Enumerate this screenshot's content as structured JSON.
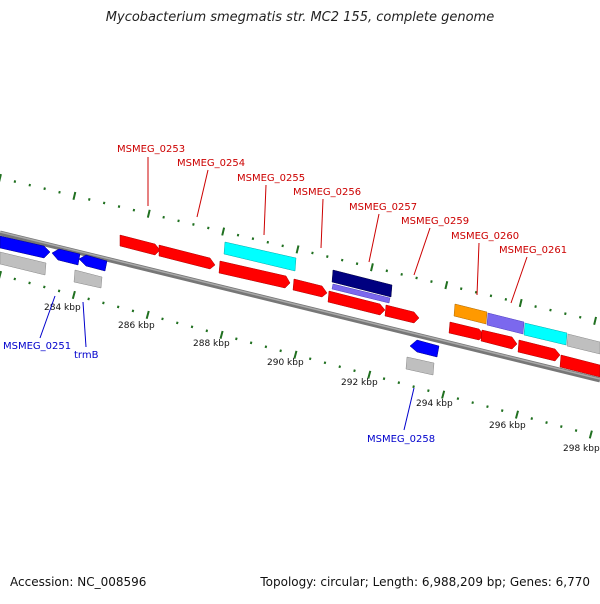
{
  "header": {
    "title": "Mycobacterium smegmatis str. MC2 155, complete genome"
  },
  "footer": {
    "accession": "Accession: NC_008596",
    "summary": "Topology: circular; Length: 6,988,209 bp; Genes: 6,770"
  },
  "colors": {
    "red": "#ff0000",
    "cyan": "#00ffff",
    "blue": "#0000ff",
    "navy": "#000080",
    "purple": "#7b68ee",
    "orange": "#ff9900",
    "gray": "#bfbfbf",
    "tick_green": "#207020",
    "label_red": "#cc0000",
    "label_blue": "#0000cc"
  },
  "scale": {
    "labels": [
      "284 kbp",
      "286 kbp",
      "288 kbp",
      "290 kbp",
      "292 kbp",
      "294 kbp",
      "296 kbp",
      "298 kbp"
    ]
  },
  "gene_labels_top": [
    "MSMEG_0253",
    "MSMEG_0254",
    "MSMEG_0255",
    "MSMEG_0256",
    "MSMEG_0257",
    "MSMEG_0259",
    "MSMEG_0260",
    "MSMEG_0261"
  ],
  "gene_labels_bottom": [
    "MSMEG_0251",
    "trmB",
    "MSMEG_0258"
  ]
}
